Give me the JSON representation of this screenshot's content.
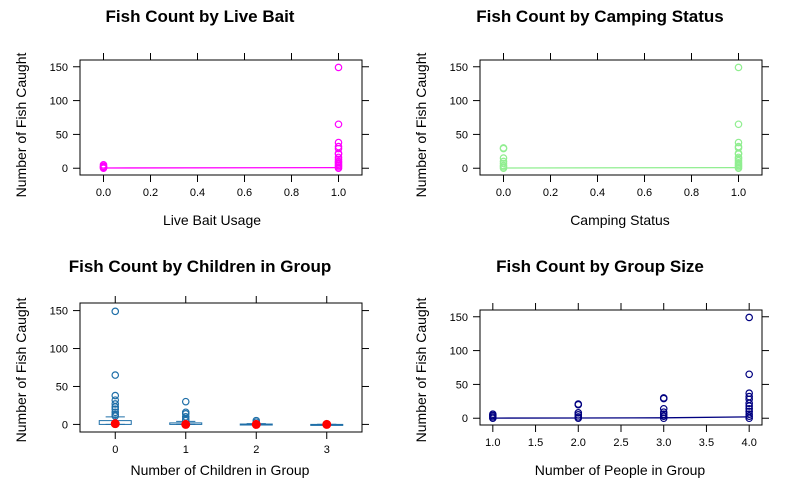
{
  "chart_data": [
    {
      "type": "scatter",
      "title": "Fish Count by Live Bait",
      "xlabel": "Live Bait Usage",
      "ylabel": "Number of Fish Caught",
      "xlim": [
        -0.1,
        1.1
      ],
      "ylim": [
        -10,
        160
      ],
      "xticks": [
        "0.0",
        "0.2",
        "0.4",
        "0.6",
        "0.8",
        "1.0"
      ],
      "yticks": [
        "0",
        "50",
        "100",
        "150"
      ],
      "color": "#ff00ff",
      "points": [
        {
          "x": 0,
          "y": 0
        },
        {
          "x": 0,
          "y": 1
        },
        {
          "x": 0,
          "y": 2
        },
        {
          "x": 0,
          "y": 3
        },
        {
          "x": 0,
          "y": 5
        },
        {
          "x": 1,
          "y": 0
        },
        {
          "x": 1,
          "y": 2
        },
        {
          "x": 1,
          "y": 4
        },
        {
          "x": 1,
          "y": 6
        },
        {
          "x": 1,
          "y": 8
        },
        {
          "x": 1,
          "y": 10
        },
        {
          "x": 1,
          "y": 13
        },
        {
          "x": 1,
          "y": 16
        },
        {
          "x": 1,
          "y": 21
        },
        {
          "x": 1,
          "y": 22
        },
        {
          "x": 1,
          "y": 29
        },
        {
          "x": 1,
          "y": 32
        },
        {
          "x": 1,
          "y": 38
        },
        {
          "x": 1,
          "y": 65
        },
        {
          "x": 1,
          "y": 149
        }
      ],
      "fit_line": [
        {
          "x": 0,
          "y": 0.3
        },
        {
          "x": 1,
          "y": 1.0
        }
      ]
    },
    {
      "type": "scatter",
      "title": "Fish Count by Camping Status",
      "xlabel": "Camping Status",
      "ylabel": "Number of Fish Caught",
      "xlim": [
        -0.1,
        1.1
      ],
      "ylim": [
        -10,
        160
      ],
      "xticks": [
        "0.0",
        "0.2",
        "0.4",
        "0.6",
        "0.8",
        "1.0"
      ],
      "yticks": [
        "0",
        "50",
        "100",
        "150"
      ],
      "color": "#90ee90",
      "points": [
        {
          "x": 0,
          "y": 0
        },
        {
          "x": 0,
          "y": 2
        },
        {
          "x": 0,
          "y": 4
        },
        {
          "x": 0,
          "y": 7
        },
        {
          "x": 0,
          "y": 10
        },
        {
          "x": 0,
          "y": 15
        },
        {
          "x": 0,
          "y": 29
        },
        {
          "x": 0,
          "y": 30
        },
        {
          "x": 1,
          "y": 0
        },
        {
          "x": 1,
          "y": 2
        },
        {
          "x": 1,
          "y": 4
        },
        {
          "x": 1,
          "y": 6
        },
        {
          "x": 1,
          "y": 8
        },
        {
          "x": 1,
          "y": 11
        },
        {
          "x": 1,
          "y": 14
        },
        {
          "x": 1,
          "y": 16
        },
        {
          "x": 1,
          "y": 21
        },
        {
          "x": 1,
          "y": 22
        },
        {
          "x": 1,
          "y": 30
        },
        {
          "x": 1,
          "y": 32
        },
        {
          "x": 1,
          "y": 38
        },
        {
          "x": 1,
          "y": 65
        },
        {
          "x": 1,
          "y": 149
        }
      ],
      "fit_line": [
        {
          "x": 0,
          "y": 0.4
        },
        {
          "x": 1,
          "y": 1.0
        }
      ]
    },
    {
      "type": "box",
      "title": "Fish Count by Children in Group",
      "xlabel": "Number of Children in Group",
      "ylabel": "Number of Fish Caught",
      "xlim": [
        -0.5,
        3.5
      ],
      "ylim": [
        -10,
        160
      ],
      "categories": [
        "0",
        "1",
        "2",
        "3"
      ],
      "yticks": [
        "0",
        "50",
        "100",
        "150"
      ],
      "color": "#1f6fa8",
      "median_color": "#ff0000",
      "boxes": [
        {
          "category": "0",
          "q1": 0,
          "median": 1,
          "q3": 5,
          "whisker_low": 0,
          "whisker_high": 10,
          "outliers": [
            11,
            13,
            16,
            20,
            23,
            27,
            32,
            38,
            65,
            149
          ]
        },
        {
          "category": "1",
          "q1": 0,
          "median": 0,
          "q3": 2,
          "whisker_low": 0,
          "whisker_high": 4,
          "outliers": [
            5,
            7,
            10,
            14,
            16,
            30
          ]
        },
        {
          "category": "2",
          "q1": 0,
          "median": 0,
          "q3": 0.5,
          "whisker_low": 0,
          "whisker_high": 1,
          "outliers": [
            3,
            5
          ]
        },
        {
          "category": "3",
          "q1": 0,
          "median": 0,
          "q3": 0,
          "whisker_low": 0,
          "whisker_high": 0,
          "outliers": []
        }
      ]
    },
    {
      "type": "scatter",
      "title": "Fish Count by Group Size",
      "xlabel": "Number of People in Group",
      "ylabel": "Number of Fish Caught",
      "xlim": [
        0.85,
        4.15
      ],
      "ylim": [
        -10,
        160
      ],
      "xticks": [
        "1.0",
        "1.5",
        "2.0",
        "2.5",
        "3.0",
        "3.5",
        "4.0"
      ],
      "yticks": [
        "0",
        "50",
        "100",
        "150"
      ],
      "color": "#000080",
      "points": [
        {
          "x": 1,
          "y": 0
        },
        {
          "x": 1,
          "y": 2
        },
        {
          "x": 1,
          "y": 4
        },
        {
          "x": 1,
          "y": 6
        },
        {
          "x": 2,
          "y": 0
        },
        {
          "x": 2,
          "y": 2
        },
        {
          "x": 2,
          "y": 5
        },
        {
          "x": 2,
          "y": 8
        },
        {
          "x": 2,
          "y": 20
        },
        {
          "x": 2,
          "y": 21
        },
        {
          "x": 3,
          "y": 0
        },
        {
          "x": 3,
          "y": 3
        },
        {
          "x": 3,
          "y": 6
        },
        {
          "x": 3,
          "y": 9
        },
        {
          "x": 3,
          "y": 14
        },
        {
          "x": 3,
          "y": 29
        },
        {
          "x": 3,
          "y": 30
        },
        {
          "x": 4,
          "y": 0
        },
        {
          "x": 4,
          "y": 3
        },
        {
          "x": 4,
          "y": 6
        },
        {
          "x": 4,
          "y": 10
        },
        {
          "x": 4,
          "y": 14
        },
        {
          "x": 4,
          "y": 18
        },
        {
          "x": 4,
          "y": 22
        },
        {
          "x": 4,
          "y": 28
        },
        {
          "x": 4,
          "y": 32
        },
        {
          "x": 4,
          "y": 37
        },
        {
          "x": 4,
          "y": 65
        },
        {
          "x": 4,
          "y": 149
        }
      ],
      "fit_line": [
        {
          "x": 1,
          "y": 0.2
        },
        {
          "x": 2,
          "y": 0.3
        },
        {
          "x": 3,
          "y": 0.6
        },
        {
          "x": 4,
          "y": 2.0
        }
      ]
    }
  ]
}
